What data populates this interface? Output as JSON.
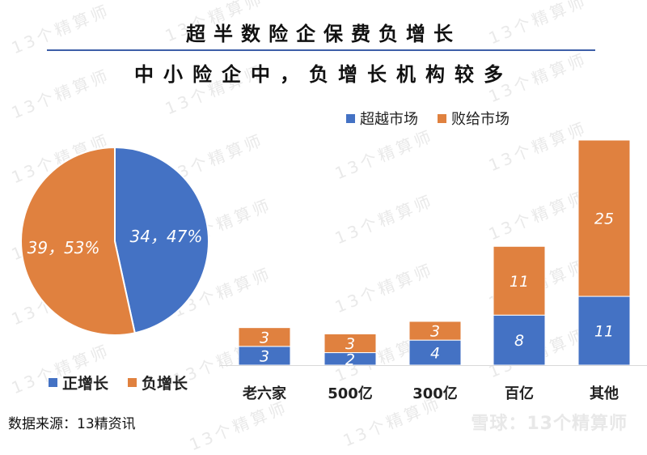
{
  "title": "超半数险企保费负增长",
  "subtitle": "中小险企中，负增长机构较多",
  "source": "数据来源：13精资讯",
  "brand": "雪球：13个精算师",
  "watermark": "13个精算师",
  "colors": {
    "blue": "#4472c4",
    "orange": "#e0813f"
  },
  "chart_data": [
    {
      "type": "pie",
      "slices": [
        {
          "name": "正增长",
          "value": 34,
          "percent": 47,
          "label": "34，47%",
          "color": "#4472c4"
        },
        {
          "name": "负增长",
          "value": 39,
          "percent": 53,
          "label": "39，53%",
          "color": "#e0813f"
        }
      ],
      "legend": [
        "正增长",
        "负增长"
      ],
      "legend_position": "bottom"
    },
    {
      "type": "bar",
      "stacked": true,
      "categories": [
        "老六家",
        "500亿",
        "300亿",
        "百亿",
        "其他"
      ],
      "series": [
        {
          "name": "超越市场",
          "values": [
            3,
            2,
            4,
            8,
            11
          ],
          "color": "#4472c4"
        },
        {
          "name": "败给市场",
          "values": [
            3,
            3,
            3,
            11,
            25
          ],
          "color": "#e0813f"
        }
      ],
      "legend_position": "top",
      "ylim": [
        0,
        36
      ],
      "grid": false
    }
  ]
}
